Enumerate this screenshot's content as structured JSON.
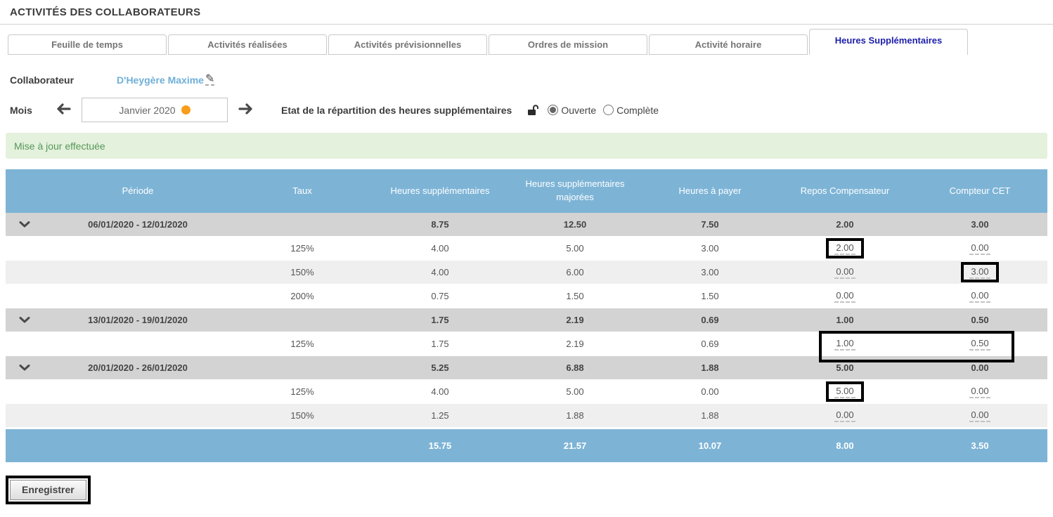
{
  "page": {
    "title": "ACTIVITÉS DES COLLABORATEURS"
  },
  "tabs": [
    {
      "label": "Feuille de temps",
      "active": false
    },
    {
      "label": "Activités réalisées",
      "active": false
    },
    {
      "label": "Activités prévisionnelles",
      "active": false
    },
    {
      "label": "Ordres de mission",
      "active": false
    },
    {
      "label": "Activité horaire",
      "active": false
    },
    {
      "label": "Heures Supplémentaires",
      "active": true
    }
  ],
  "collaborateur": {
    "label": "Collaborateur",
    "value": "D'Heygère Maxime"
  },
  "mois": {
    "label": "Mois",
    "value": "Janvier 2020"
  },
  "etat": {
    "label": "Etat de la répartition des heures supplémentaires",
    "options": [
      {
        "label": "Ouverte",
        "selected": true
      },
      {
        "label": "Complète",
        "selected": false
      }
    ]
  },
  "message": "Mise à jour effectuée",
  "table": {
    "headers": [
      "Période",
      "Taux",
      "Heures supplémentaires",
      "Heures supplémentaires majorées",
      "Heures à payer",
      "Repos Compensateur",
      "Compteur CET"
    ],
    "groups": [
      {
        "period": "06/01/2020 - 12/01/2020",
        "totals": {
          "hs": "8.75",
          "hsm": "12.50",
          "hp": "7.50",
          "rc": "2.00",
          "cet": "3.00"
        },
        "rows": [
          {
            "taux": "125%",
            "hs": "4.00",
            "hsm": "5.00",
            "hp": "3.00",
            "rc": "2.00",
            "cet": "0.00",
            "rc_hl": true
          },
          {
            "taux": "150%",
            "hs": "4.00",
            "hsm": "6.00",
            "hp": "3.00",
            "rc": "0.00",
            "cet": "3.00",
            "cet_hl": true
          },
          {
            "taux": "200%",
            "hs": "0.75",
            "hsm": "1.50",
            "hp": "1.50",
            "rc": "0.00",
            "cet": "0.00"
          }
        ]
      },
      {
        "period": "13/01/2020 - 19/01/2020",
        "totals": {
          "hs": "1.75",
          "hsm": "2.19",
          "hp": "0.69",
          "rc": "1.00",
          "cet": "0.50"
        },
        "rows": [
          {
            "taux": "125%",
            "hs": "1.75",
            "hsm": "2.19",
            "hp": "0.69",
            "rc": "1.00",
            "cet": "0.50",
            "span_hl": true
          }
        ]
      },
      {
        "period": "20/01/2020 - 26/01/2020",
        "totals": {
          "hs": "5.25",
          "hsm": "6.88",
          "hp": "1.88",
          "rc": "5.00",
          "cet": "0.00"
        },
        "rows": [
          {
            "taux": "125%",
            "hs": "4.00",
            "hsm": "5.00",
            "hp": "0.00",
            "rc": "5.00",
            "cet": "0.00",
            "rc_hl": true
          },
          {
            "taux": "150%",
            "hs": "1.25",
            "hsm": "1.88",
            "hp": "1.88",
            "rc": "0.00",
            "cet": "0.00"
          }
        ]
      }
    ],
    "footer": {
      "hs": "15.75",
      "hsm": "21.57",
      "hp": "10.07",
      "rc": "8.00",
      "cet": "3.50"
    }
  },
  "save_button": "Enregistrer",
  "colors": {
    "header_blue": "#7db4d6",
    "group_row_gray": "#d3d3d3",
    "alt_row_gray": "#efefef",
    "success_bg": "#e4f1dc",
    "success_text": "#56975a",
    "active_tab_blue": "#1c1ea9",
    "link_blue": "#6fafd8",
    "indicator_orange": "#f99d1c",
    "highlight_black": "#000000"
  }
}
